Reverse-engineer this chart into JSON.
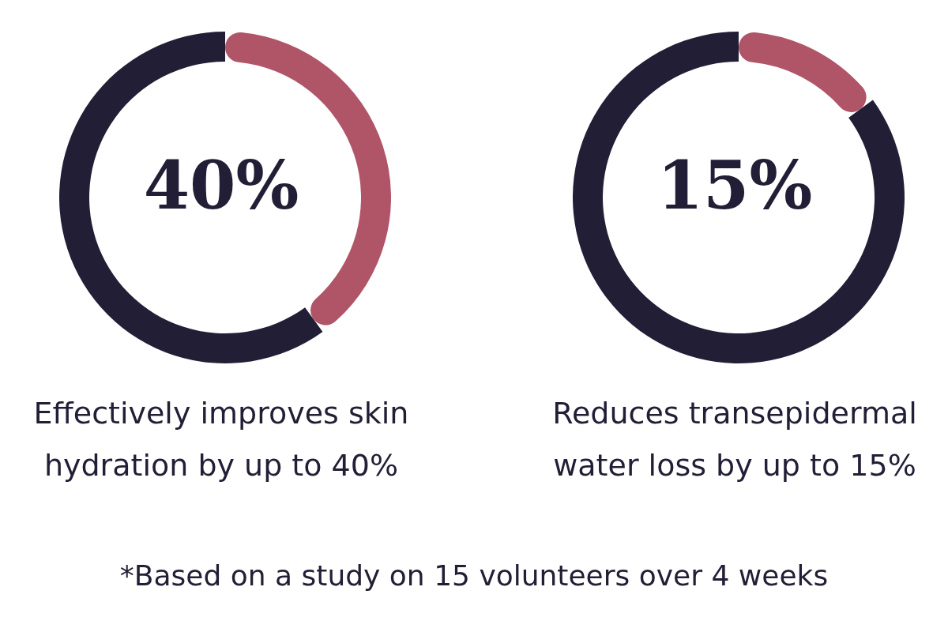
{
  "chart_data": [
    {
      "type": "donut",
      "categories": [
        null,
        null
      ],
      "values": [
        40,
        60
      ],
      "colors": [
        "#b05568",
        "#221e36"
      ],
      "title": "40%",
      "subtitle": "Effectively improves skin hydration by up to 40%"
    },
    {
      "type": "donut",
      "categories": [
        null,
        null
      ],
      "values": [
        15,
        85
      ],
      "colors": [
        "#b05568",
        "#221e36"
      ],
      "title": "15%",
      "subtitle": "Reduces transepidermal water loss by up to 15%",
      "annotations": [
        "*Based on a study on 15 volunteers over 4 weeks"
      ]
    }
  ]
}
